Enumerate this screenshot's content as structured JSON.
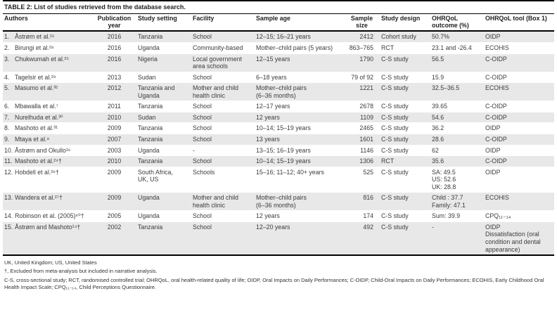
{
  "colors": {
    "row_shade": "#e8e8e8",
    "border": "#000000",
    "text": "#3c3c3c"
  },
  "title": {
    "label": "TABLE 2:",
    "text": "List of studies retrieved from the database search."
  },
  "table": {
    "keys": [
      "authors",
      "year",
      "setting",
      "facility",
      "age",
      "size",
      "design",
      "outcome",
      "tool"
    ],
    "columns": [
      "Authors",
      "Publication year",
      "Study setting",
      "Facility",
      "Sample age",
      "Sample size",
      "Study design",
      "OHRQoL outcome (%)",
      "OHRQoL tool (Box 1)"
    ],
    "rows": [
      {
        "num": "1.",
        "authors": "Åstrøm et al.¹⁵",
        "year": "2016",
        "setting": "Tanzania",
        "facility": "School",
        "age": "12–15; 16–21 years",
        "size": "2412",
        "design": "Cohort study",
        "outcome": "50.7%",
        "tool": "OIDP"
      },
      {
        "num": "2.",
        "authors": "Birungi et al.²⁸",
        "year": "2016",
        "setting": "Uganda",
        "facility": "Community-based",
        "age": "Mother–child pairs (5 years)",
        "size": "863–765",
        "design": "RCT",
        "outcome": "23.1 and -26.4",
        "tool": "ECOHIS"
      },
      {
        "num": "3.",
        "authors": "Chukwumah et al.²⁵",
        "year": "2016",
        "setting": "Nigeria",
        "facility": "Local government\narea schools",
        "age": "12–15 years",
        "size": "1790",
        "design": "C-S study",
        "outcome": "56.5",
        "tool": "C-OIDP"
      },
      {
        "num": "4.",
        "authors": "Tagelsir et al.²⁹",
        "year": "2013",
        "setting": "Sudan",
        "facility": "School",
        "age": "6–18 years",
        "size": "79 of 92",
        "design": "C-S study",
        "outcome": "15.9",
        "tool": "C-OIDP"
      },
      {
        "num": "5.",
        "authors": "Masumo et al.³²",
        "year": "2012",
        "setting": "Tanzania and\nUganda",
        "facility": "Mother and child\nhealth clinic",
        "age": "Mother–child pairs\n(6–36 months)",
        "size": "1221",
        "design": "C-S study",
        "outcome": "32.5–36.5",
        "tool": "ECOHIS"
      },
      {
        "num": "6.",
        "authors": "Mbawalla et al.⁷",
        "year": "2011",
        "setting": "Tanzania",
        "facility": "School",
        "age": "12–17 years",
        "size": "2678",
        "design": "C-S study",
        "outcome": "39.65",
        "tool": "C-OIDP"
      },
      {
        "num": "7.",
        "authors": "Nurelhuda et al.³⁰",
        "year": "2010",
        "setting": "Sudan",
        "facility": "School",
        "age": "12 years",
        "size": "1109",
        "design": "C-S study",
        "outcome": "54.6",
        "tool": "C-OIDP"
      },
      {
        "num": "8.",
        "authors": "Mashoto et al.³¹",
        "year": "2009",
        "setting": "Tanzania",
        "facility": "School",
        "age": "10–14; 15–19 years",
        "size": "2465",
        "design": "C-S study",
        "outcome": "36.2",
        "tool": "OIDP"
      },
      {
        "num": "9.",
        "authors": "Mtaya et al.⁸",
        "year": "2007",
        "setting": "Tanzania",
        "facility": "School",
        "age": "13 years",
        "size": "1601",
        "design": "C-S study",
        "outcome": "28.6",
        "tool": "C-OIDP"
      },
      {
        "num": "10.",
        "authors": "Åstrøm and Okullo¹⁶",
        "year": "2003",
        "setting": "Uganda",
        "facility": "-",
        "age": "13–15; 16–19 years",
        "size": "1146",
        "design": "C-S study",
        "outcome": "62",
        "tool": "OIDP"
      },
      {
        "num": "11.",
        "authors": "Mashoto et al.²⁴†",
        "year": "2010",
        "setting": "Tanzania",
        "facility": "School",
        "age": "10–14; 15–19 years",
        "size": "1306",
        "design": "RCT",
        "outcome": "35.6",
        "tool": "C-OIDP"
      },
      {
        "num": "12.",
        "authors": "Hobdell et al.²⁶†",
        "year": "2009",
        "setting": "South Africa,\nUK, US",
        "facility": "Schools",
        "age": "15–16; 11–12; 40+ years",
        "size": "525",
        "design": "C-S study",
        "outcome": "SA: 49.5\nUS: 52.6\nUK: 28.8",
        "tool": "OIDP"
      },
      {
        "num": "13.",
        "authors": "Wandera et al.²⁷†",
        "year": "2009",
        "setting": "Uganda",
        "facility": "Mother and child\nhealth clinic",
        "age": "Mother–child pairs\n(6–36 months)",
        "size": "816",
        "design": "C-S study",
        "outcome": "Child : 37.7\nFamily: 47.1",
        "tool": "ECOHIS"
      },
      {
        "num": "14.",
        "authors": "Robinson et al. (2005)⁶⁰†",
        "year": "2005",
        "setting": "Uganda",
        "facility": "School",
        "age": "12 years",
        "size": "174",
        "design": "C-S study",
        "outcome": "Sum: 39.9",
        "tool": "CPQ₁₁₋₁₄"
      },
      {
        "num": "15.",
        "authors": "Åstrøm and Mashoto¹⁴†",
        "year": "2002",
        "setting": "Tanzania",
        "facility": "School",
        "age": "12–20 years",
        "size": "492",
        "design": "C-S study",
        "outcome": "-",
        "tool": "OIDP\nDissatisfaction (oral condition and dental appearance)"
      }
    ]
  },
  "footnotes": [
    "UK, United Kingdom; US, United States",
    "†, Excluded from meta-analysis but included in narrative analysis.",
    "C-S, cross-sectional study; RCT, randomised controlled trial; OHRQoL, oral health-related quality of life; OIDP, Oral Impacts on Daily Performances; C-OIDP, Child-Oral Impacts on Daily Performances; ECOHIS, Early Childhood Oral Health Impact Scale; CPQ₁₁₋₁₄, Child Perceptions Questionnaire."
  ]
}
